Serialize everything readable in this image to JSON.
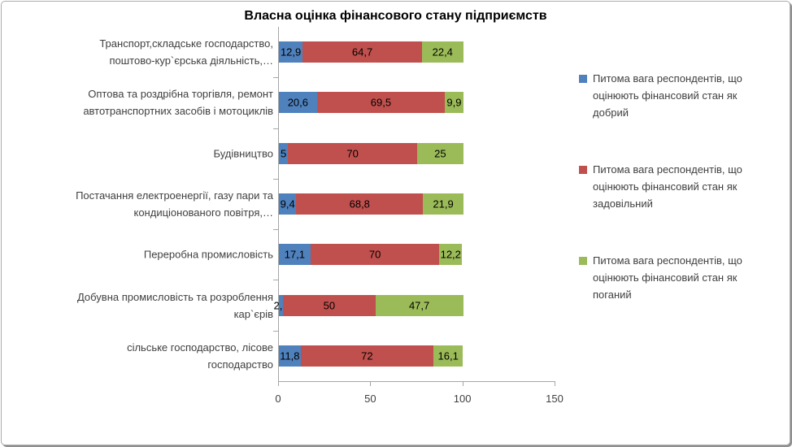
{
  "chart_data": {
    "type": "bar",
    "orientation": "horizontal",
    "stacked": true,
    "title": "Власна оцінка фінансового стану підприємств",
    "categories": [
      "Транспорт,складське господарство,\nпоштово-кур`єрська діяльність,…",
      "Оптова та роздрібна торгівля, ремонт\nавтотранспортних засобів і мотоциклів",
      "Будівництво",
      "Постачання електроенергії, газу пари та\nкондиціонованого повітря,…",
      "Переробна промисловість",
      "Добувна промисловість та розроблення\nкар`єрів",
      "сільське господарство, лісове\nгосподарство"
    ],
    "series": [
      {
        "name": "Питома вага респондентів, що\nоцінюють фінансовий стан як\nдобрий",
        "color": "#4F81BD",
        "values": [
          12.9,
          20.6,
          5,
          9.4,
          17.1,
          2.3,
          11.8
        ]
      },
      {
        "name": "Питома вага респондентів, що\nоцінюють фінансовий стан як\nзадовільний",
        "color": "#C0504D",
        "values": [
          64.7,
          69.5,
          70,
          68.8,
          70,
          50,
          72
        ]
      },
      {
        "name": "Питома вага респондентів, що\nоцінюють фінансовий стан як\nпоганий",
        "color": "#9BBB59",
        "values": [
          22.4,
          9.9,
          25,
          21.9,
          12.2,
          47.7,
          16.1
        ]
      }
    ],
    "x_ticks": [
      0,
      50,
      100,
      150
    ],
    "xlim": [
      0,
      150
    ],
    "grid": false,
    "legend_position": "right",
    "decimal_separator": ",",
    "colors": {
      "axis_line": "#A6A6A6",
      "text": "#404040",
      "title": "#000000",
      "data_label": "#000000"
    }
  }
}
